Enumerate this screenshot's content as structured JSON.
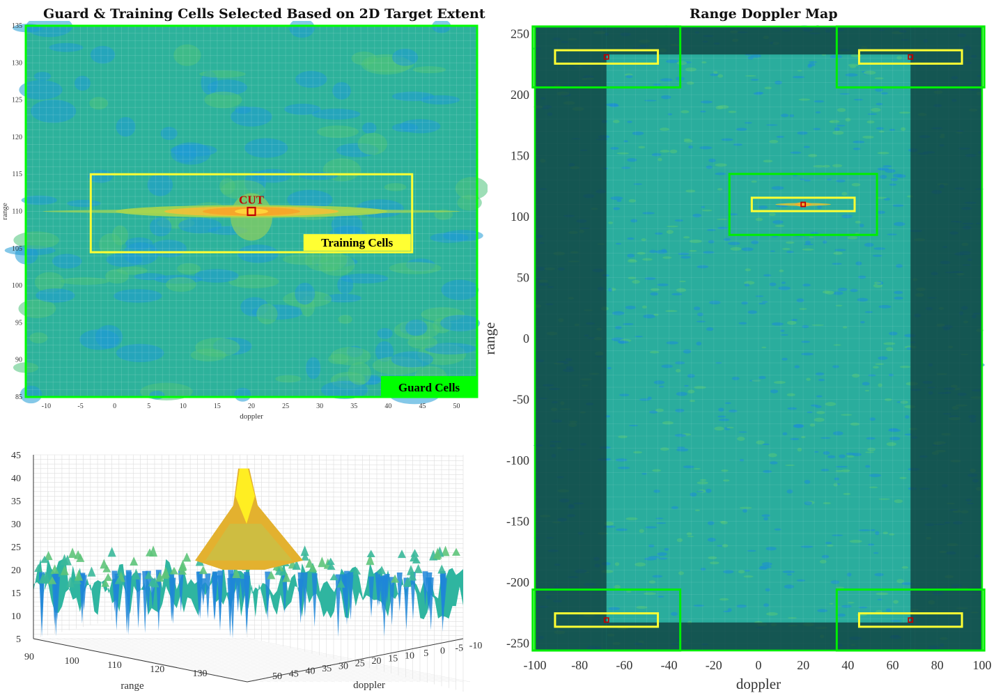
{
  "chart_data": [
    {
      "type": "heatmap",
      "title": "Guard & Training Cells Selected Based on 2D Target Extent",
      "xlabel": "doppler",
      "ylabel": "range",
      "xlim": [
        -13,
        53
      ],
      "ylim": [
        85,
        135
      ],
      "x_ticks": [
        -10,
        -5,
        0,
        5,
        10,
        15,
        20,
        25,
        30,
        35,
        40,
        45,
        50
      ],
      "y_ticks": [
        85,
        90,
        95,
        100,
        105,
        110,
        115,
        120,
        125,
        130,
        135
      ],
      "target": {
        "doppler": 20,
        "range": 110
      },
      "annotations": {
        "cut_label": "CUT",
        "training_label": "Training Cells",
        "guard_label": "Guard Cells"
      },
      "training_box": {
        "doppler": [
          -3.5,
          43.5
        ],
        "range": [
          104.5,
          115
        ]
      },
      "colors": {
        "background": "#2db29b",
        "guard": "#00ff00",
        "training": "#ffff33",
        "cut": "#c00000"
      }
    },
    {
      "type": "surface",
      "xlabel": "range",
      "ylabel": "doppler",
      "range_ticks": [
        90,
        100,
        110,
        120,
        130
      ],
      "doppler_ticks": [
        50,
        45,
        40,
        35,
        30,
        25,
        20,
        15,
        10,
        5,
        0,
        -5,
        -10
      ],
      "z_ticks": [
        5,
        10,
        15,
        20,
        25,
        30,
        35,
        40,
        45
      ],
      "zlim": [
        5,
        45
      ],
      "peak": {
        "range": 110,
        "doppler": 20,
        "value": 42
      }
    },
    {
      "type": "heatmap",
      "title": "Range Doppler Map",
      "xlabel": "doppler",
      "ylabel": "range",
      "xlim": [
        -100,
        100
      ],
      "ylim": [
        -256,
        256
      ],
      "x_ticks": [
        -100,
        -80,
        -60,
        -40,
        -20,
        0,
        20,
        40,
        60,
        80,
        100
      ],
      "y_ticks": [
        -250,
        -200,
        -150,
        -100,
        -50,
        0,
        50,
        100,
        150,
        200,
        250
      ],
      "target": {
        "doppler": 20,
        "range": 110
      },
      "valid_region": {
        "doppler": [
          -68,
          68
        ],
        "range": [
          -233,
          233
        ]
      }
    }
  ]
}
